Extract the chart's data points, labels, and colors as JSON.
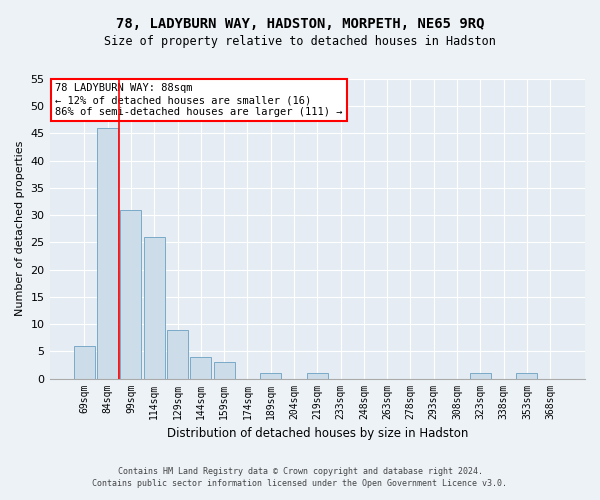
{
  "title": "78, LADYBURN WAY, HADSTON, MORPETH, NE65 9RQ",
  "subtitle": "Size of property relative to detached houses in Hadston",
  "xlabel": "Distribution of detached houses by size in Hadston",
  "ylabel": "Number of detached properties",
  "bar_color": "#ccdce8",
  "bar_edge_color": "#7aaac8",
  "categories": [
    "69sqm",
    "84sqm",
    "99sqm",
    "114sqm",
    "129sqm",
    "144sqm",
    "159sqm",
    "174sqm",
    "189sqm",
    "204sqm",
    "219sqm",
    "233sqm",
    "248sqm",
    "263sqm",
    "278sqm",
    "293sqm",
    "308sqm",
    "323sqm",
    "338sqm",
    "353sqm",
    "368sqm"
  ],
  "values": [
    6,
    46,
    31,
    26,
    9,
    4,
    3,
    0,
    1,
    0,
    1,
    0,
    0,
    0,
    0,
    0,
    0,
    1,
    0,
    1,
    0
  ],
  "ylim": [
    0,
    55
  ],
  "yticks": [
    0,
    5,
    10,
    15,
    20,
    25,
    30,
    35,
    40,
    45,
    50,
    55
  ],
  "red_line_x": 1.5,
  "annotation_line1": "78 LADYBURN WAY: 88sqm",
  "annotation_line2": "← 12% of detached houses are smaller (16)",
  "annotation_line3": "86% of semi-detached houses are larger (111) →",
  "footer1": "Contains HM Land Registry data © Crown copyright and database right 2024.",
  "footer2": "Contains public sector information licensed under the Open Government Licence v3.0.",
  "background_color": "#edf2f7",
  "plot_bg_color": "#e5ecf3",
  "grid_color": "#ffffff"
}
